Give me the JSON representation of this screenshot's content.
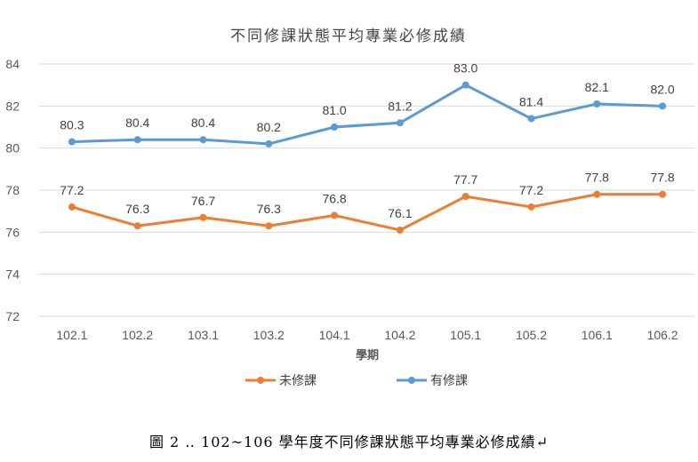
{
  "chart_data": {
    "type": "line",
    "title": "不同修課狀態平均專業必修成績",
    "xlabel": "學期",
    "ylabel": "",
    "categories": [
      "102.1",
      "102.2",
      "103.1",
      "103.2",
      "104.1",
      "104.2",
      "105.1",
      "105.2",
      "106.1",
      "106.2"
    ],
    "ylim": [
      72,
      84
    ],
    "yticks": [
      72,
      74,
      76,
      78,
      80,
      82,
      84
    ],
    "grid": true,
    "legend_position": "bottom",
    "series": [
      {
        "name": "未修課",
        "color": "#ED7D31",
        "values": [
          77.2,
          76.3,
          76.7,
          76.3,
          76.8,
          76.1,
          77.7,
          77.2,
          77.8,
          77.8
        ],
        "labels": [
          "77.2",
          "76.3",
          "76.7",
          "76.3",
          "76.8",
          "76.1",
          "77.7",
          "77.2",
          "77.8",
          "77.8"
        ]
      },
      {
        "name": "有修課",
        "color": "#5B9BD5",
        "values": [
          80.3,
          80.4,
          80.4,
          80.2,
          81.0,
          81.2,
          83.0,
          81.4,
          82.1,
          82.0
        ],
        "labels": [
          "80.3",
          "80.4",
          "80.4",
          "80.2",
          "81.0",
          "81.2",
          "83.0",
          "81.4",
          "82.1",
          "82.0"
        ]
      }
    ]
  },
  "caption": "圖 2 ‥ 102~106 學年度不同修課狀態平均專業必修成績↵"
}
